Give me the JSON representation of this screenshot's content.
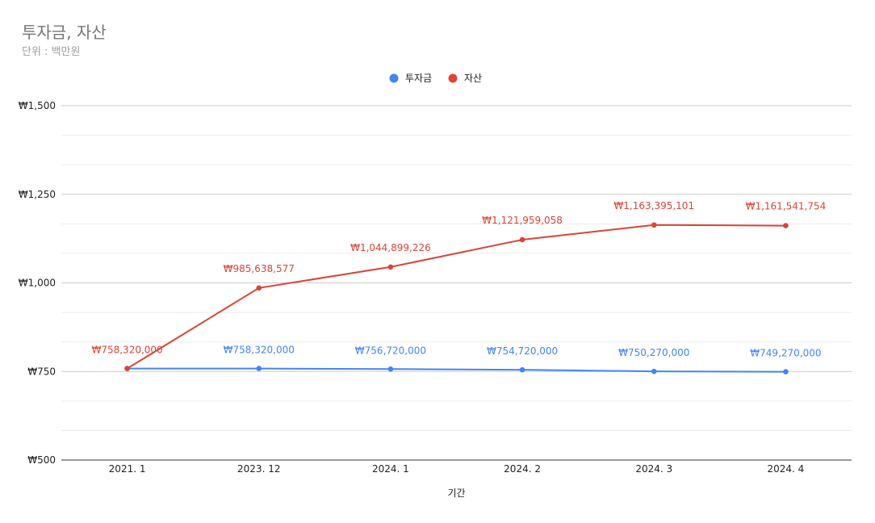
{
  "chart_data": {
    "type": "line",
    "title": "투자금, 자산",
    "subtitle": "단위 : 백만원",
    "xlabel": "기간",
    "ylabel": "",
    "categories": [
      "2021. 1",
      "2023. 12",
      "2024. 1",
      "2024. 2",
      "2024. 3",
      "2024. 4"
    ],
    "ylim": [
      500,
      1500
    ],
    "y_ticks": [
      500,
      750,
      1000,
      1250,
      1500
    ],
    "y_tick_labels": [
      "₩500",
      "₩750",
      "₩1,000",
      "₩1,250",
      "₩1,500"
    ],
    "grid": true,
    "legend": "top-center",
    "series": [
      {
        "name": "투자금",
        "color": "#4285f4",
        "values": [
          758.32,
          758.32,
          756.72,
          754.72,
          750.27,
          749.27
        ],
        "labels": [
          "",
          "₩758,320,000",
          "₩756,720,000",
          "₩754,720,000",
          "₩750,270,000",
          "₩749,270,000"
        ]
      },
      {
        "name": "자산",
        "color": "#db4437",
        "values": [
          758.32,
          985.638577,
          1044.899226,
          1121.959058,
          1163.395101,
          1161.541754
        ],
        "labels": [
          "₩758,320,000",
          "₩985,638,577",
          "₩1,044,899,226",
          "₩1,121,959,058",
          "₩1,163,395,101",
          "₩1,161,541,754"
        ]
      }
    ]
  }
}
